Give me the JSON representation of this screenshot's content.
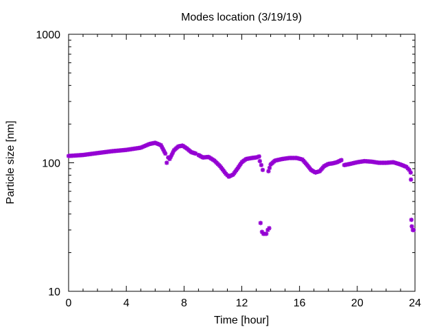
{
  "chart_data": {
    "type": "scatter",
    "title": "Modes location (3/19/19)",
    "xlabel": "Time [hour]",
    "ylabel": "Particle size [nm]",
    "xlim": [
      0,
      24
    ],
    "ylim": [
      10,
      1000
    ],
    "yscale": "log",
    "x_ticks": [
      0,
      4,
      8,
      12,
      16,
      20,
      24
    ],
    "x_tick_labels": [
      "0",
      "4",
      "8",
      "12",
      "16",
      "20",
      "24"
    ],
    "y_ticks": [
      10,
      100,
      1000
    ],
    "y_tick_labels": [
      "10",
      "100",
      "1000"
    ],
    "grid": false,
    "marker_color": "#9400D3",
    "marker": "star",
    "segments": [
      {
        "x": [
          0,
          1,
          2,
          3,
          4,
          5,
          5.6,
          6.0,
          6.4,
          6.7
        ],
        "y": [
          113,
          115,
          119,
          123,
          126,
          131,
          140,
          143,
          137,
          118
        ]
      },
      {
        "x": [
          6.8,
          6.9,
          7.0,
          7.3,
          7.6,
          7.9,
          8.2,
          8.5,
          8.8
        ],
        "y": [
          100,
          110,
          107,
          125,
          134,
          136,
          129,
          121,
          118
        ]
      },
      {
        "x": [
          9.0,
          9.3,
          9.7,
          10.1,
          10.5,
          10.9,
          11.1,
          11.4,
          11.7,
          12.0,
          12.3,
          12.7,
          13.0,
          13.2
        ],
        "y": [
          115,
          110,
          111,
          104,
          94,
          82,
          78,
          81,
          90,
          101,
          107,
          109,
          110,
          112
        ]
      },
      {
        "x": [
          13.25,
          13.35,
          13.45
        ],
        "y": [
          103,
          96,
          88
        ]
      },
      {
        "x": [
          13.3,
          13.4,
          13.5,
          13.6,
          13.7,
          13.8,
          13.9
        ],
        "y": [
          34,
          29,
          28,
          28,
          28,
          30,
          31
        ]
      },
      {
        "x": [
          13.85,
          14.0,
          14.3,
          14.8,
          15.3,
          15.8,
          16.2,
          16.5,
          16.8,
          17.1,
          17.4,
          17.7,
          18.0,
          18.3,
          18.6,
          18.9
        ],
        "y": [
          86,
          97,
          104,
          107,
          109,
          109,
          106,
          97,
          88,
          84,
          86,
          94,
          98,
          99,
          101,
          105
        ]
      },
      {
        "x": [
          19.1,
          19.5,
          20.0,
          20.5,
          21.0,
          21.5,
          22.0,
          22.5,
          23.0,
          23.4,
          23.6,
          23.7
        ],
        "y": [
          96,
          98,
          101,
          103,
          102,
          100,
          100,
          101,
          97,
          93,
          88,
          84
        ]
      },
      {
        "x": [
          23.72,
          23.75
        ],
        "y": [
          74,
          36
        ]
      },
      {
        "x": [
          23.78,
          23.85,
          23.9
        ],
        "y": [
          32,
          30,
          30
        ]
      }
    ]
  }
}
